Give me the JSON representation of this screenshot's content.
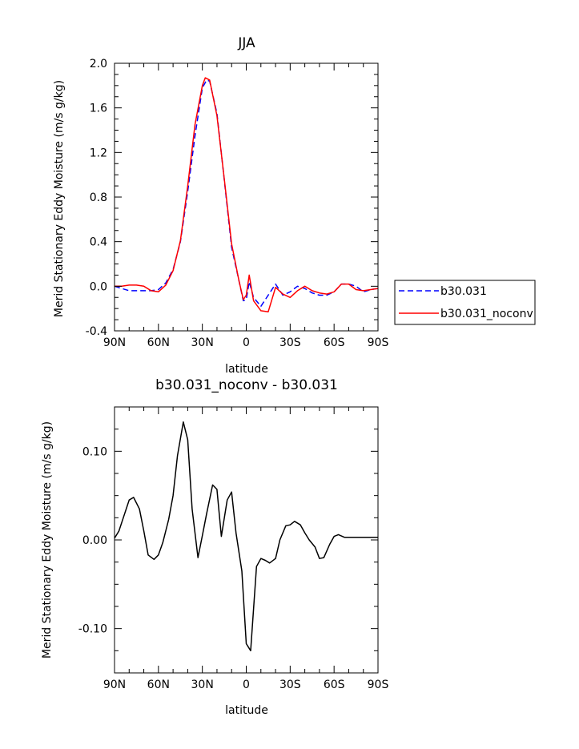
{
  "chart_data": [
    {
      "type": "line",
      "title": "JJA",
      "xlabel": "latitude",
      "ylabel": "Merid Stationary Eddy Moisture (m/s g/kg)",
      "xlim": [
        90,
        -90
      ],
      "ylim": [
        -0.4,
        2.0
      ],
      "x_ticks": [
        90,
        60,
        30,
        0,
        -30,
        -60,
        -90
      ],
      "x_tick_labels": [
        "90N",
        "60N",
        "30N",
        "0",
        "30S",
        "60S",
        "90S"
      ],
      "y_ticks": [
        -0.4,
        0.0,
        0.4,
        0.8,
        1.2,
        1.6,
        2.0
      ],
      "y_tick_labels": [
        "-0.4",
        "0.0",
        "0.4",
        "0.8",
        "1.2",
        "1.6",
        "2.0"
      ],
      "legend_position": "right",
      "series": [
        {
          "name": "b30.031",
          "color": "#0000ff",
          "dash": "dashed",
          "x": [
            90,
            85,
            80,
            75,
            70,
            65,
            60,
            55,
            50,
            45,
            40,
            35,
            30,
            27,
            25,
            20,
            15,
            10,
            5,
            2,
            0,
            -2,
            -5,
            -10,
            -15,
            -20,
            -25,
            -30,
            -35,
            -40,
            -45,
            -50,
            -55,
            -60,
            -65,
            -70,
            -75,
            -80,
            -85,
            -90
          ],
          "y": [
            0.0,
            -0.02,
            -0.04,
            -0.04,
            -0.04,
            -0.04,
            -0.03,
            0.03,
            0.15,
            0.4,
            0.85,
            1.35,
            1.78,
            1.85,
            1.84,
            1.55,
            0.95,
            0.35,
            0.05,
            -0.13,
            -0.12,
            0.04,
            -0.1,
            -0.18,
            -0.08,
            0.02,
            -0.08,
            -0.05,
            0.0,
            -0.02,
            -0.06,
            -0.08,
            -0.08,
            -0.05,
            0.02,
            0.02,
            0.0,
            -0.05,
            -0.03,
            -0.02
          ]
        },
        {
          "name": "b30.031_noconv",
          "color": "#ff0000",
          "dash": "solid",
          "x": [
            90,
            85,
            80,
            75,
            70,
            65,
            60,
            55,
            50,
            45,
            40,
            35,
            30,
            28,
            25,
            20,
            15,
            10,
            5,
            2,
            0,
            -2,
            -5,
            -10,
            -15,
            -20,
            -25,
            -30,
            -35,
            -40,
            -45,
            -50,
            -55,
            -60,
            -65,
            -70,
            -75,
            -80,
            -85,
            -90
          ],
          "y": [
            0.0,
            0.0,
            0.01,
            0.01,
            0.0,
            -0.04,
            -0.05,
            0.01,
            0.14,
            0.41,
            0.9,
            1.45,
            1.8,
            1.87,
            1.85,
            1.53,
            0.96,
            0.38,
            0.05,
            -0.12,
            -0.08,
            0.1,
            -0.13,
            -0.22,
            -0.23,
            -0.01,
            -0.07,
            -0.1,
            -0.04,
            0.0,
            -0.04,
            -0.06,
            -0.07,
            -0.05,
            0.02,
            0.02,
            -0.03,
            -0.04,
            -0.03,
            -0.02
          ]
        }
      ]
    },
    {
      "type": "line",
      "title": "b30.031_noconv - b30.031",
      "xlabel": "latitude",
      "ylabel": "Merid Stationary Eddy Moisture (m/s g/kg)",
      "xlim": [
        90,
        -90
      ],
      "ylim": [
        -0.15,
        0.15
      ],
      "x_ticks": [
        90,
        60,
        30,
        0,
        -30,
        -60,
        -90
      ],
      "x_tick_labels": [
        "90N",
        "60N",
        "30N",
        "0",
        "30S",
        "60S",
        "90S"
      ],
      "y_ticks": [
        -0.1,
        0.0,
        0.1
      ],
      "y_tick_labels": [
        "-0.10",
        "0.00",
        "0.10"
      ],
      "series": [
        {
          "color": "#000000",
          "dash": "solid",
          "x": [
            90,
            87,
            83,
            80,
            77,
            73,
            70,
            67,
            63,
            60,
            57,
            53,
            50,
            47,
            43,
            40,
            37,
            33,
            30,
            27,
            23,
            20,
            17,
            13,
            10,
            7,
            3,
            0,
            -3,
            -7,
            -10,
            -13,
            -16,
            -20,
            -23,
            -27,
            -30,
            -33,
            -37,
            -40,
            -43,
            -47,
            -50,
            -53,
            -57,
            -60,
            -63,
            -67,
            -70,
            -73,
            -77,
            -80,
            -83,
            -87,
            -90
          ],
          "y": [
            0.002,
            0.01,
            0.03,
            0.045,
            0.048,
            0.035,
            0.01,
            -0.017,
            -0.022,
            -0.017,
            -0.003,
            0.023,
            0.05,
            0.095,
            0.133,
            0.113,
            0.035,
            -0.02,
            0.005,
            0.03,
            0.062,
            0.057,
            0.004,
            0.045,
            0.054,
            0.008,
            -0.035,
            -0.117,
            -0.125,
            -0.03,
            -0.021,
            -0.023,
            -0.026,
            -0.021,
            0.0,
            0.016,
            0.017,
            0.021,
            0.017,
            0.008,
            0.0,
            -0.008,
            -0.021,
            -0.02,
            -0.005,
            0.004,
            0.006,
            0.003,
            0.003,
            0.003,
            0.003,
            0.003,
            0.003,
            0.003,
            0.003
          ]
        }
      ]
    }
  ]
}
